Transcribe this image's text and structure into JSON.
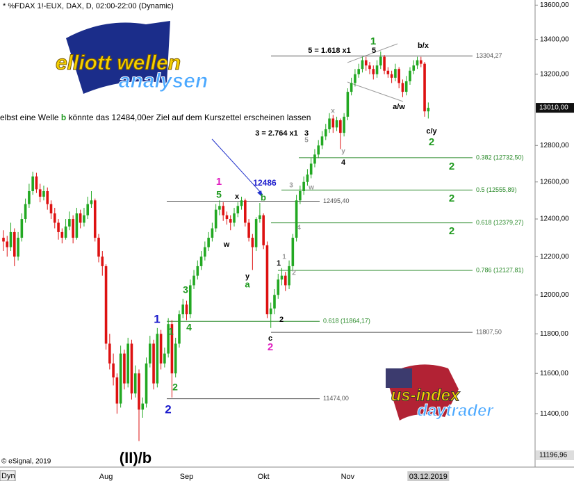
{
  "header": "* %FDAX 1!-EUX, DAX, D, 02:00-22:00 (Dynamic)",
  "caption": [
    "elbst eine Welle ",
    "b",
    " könnte das 12484,00er Ziel auf dem Kurszettel erscheinen lassen"
  ],
  "logos": {
    "top": [
      "elliott wellen",
      "analysen"
    ],
    "bottom": [
      "us-index",
      "daytrader"
    ]
  },
  "footer": {
    "copyright": "© eSignal, 2019",
    "mode": "Dyn"
  },
  "chart_data": {
    "type": "candlestick",
    "yscale": "log",
    "up_color": "#22a822",
    "down_color": "#dd1111",
    "ylim": [
      11140,
      13630
    ],
    "yticks": [
      {
        "value": 11400,
        "label": "11400,00"
      },
      {
        "value": 11600,
        "label": "11600,00"
      },
      {
        "value": 11800,
        "label": "11800,00"
      },
      {
        "value": 12000,
        "label": "12000,00"
      },
      {
        "value": 12200,
        "label": "12200,00"
      },
      {
        "value": 12400,
        "label": "12400,00"
      },
      {
        "value": 12600,
        "label": "12600,00"
      },
      {
        "value": 12800,
        "label": "12800,00"
      },
      {
        "value": 13200,
        "label": "13200,00"
      },
      {
        "value": 13400,
        "label": "13400,00"
      },
      {
        "value": 13600,
        "label": "13600,00"
      }
    ],
    "price_markers": [
      {
        "value": 13010,
        "label": "13010,00"
      },
      {
        "value": 11196.96,
        "label": "11196,96"
      }
    ],
    "categories": [
      null,
      null,
      null,
      null,
      null,
      null,
      null,
      null,
      null,
      null,
      null,
      null,
      null,
      null,
      null,
      null,
      null,
      null,
      null,
      null,
      null,
      null,
      null,
      null,
      null,
      null,
      null,
      null,
      "Aug",
      null,
      null,
      null,
      null,
      null,
      null,
      null,
      null,
      null,
      null,
      null,
      null,
      null,
      null,
      null,
      null,
      null,
      null,
      null,
      null,
      null,
      "Sep",
      null,
      null,
      null,
      null,
      null,
      null,
      null,
      null,
      null,
      null,
      null,
      null,
      null,
      null,
      null,
      null,
      null,
      null,
      null,
      null,
      "Okt",
      null,
      null,
      null,
      null,
      null,
      null,
      null,
      null,
      null,
      null,
      null,
      null,
      null,
      null,
      null,
      null,
      null,
      null,
      null,
      null,
      null,
      null,
      "Nov",
      null,
      null,
      null,
      null,
      null,
      null,
      null,
      null,
      null,
      null,
      null,
      null,
      null,
      null,
      null,
      null,
      null,
      null,
      null,
      null,
      null,
      "03.12.2019"
    ],
    "ohlc": [
      [
        12300,
        12340,
        12230,
        12280
      ],
      [
        12280,
        12310,
        12200,
        12250
      ],
      [
        12250,
        12380,
        12230,
        12330
      ],
      [
        12330,
        12350,
        12150,
        12200
      ],
      [
        12200,
        12330,
        12180,
        12300
      ],
      [
        12300,
        12430,
        12280,
        12400
      ],
      [
        12400,
        12510,
        12380,
        12480
      ],
      [
        12480,
        12590,
        12460,
        12550
      ],
      [
        12550,
        12656,
        12530,
        12630
      ],
      [
        12630,
        12650,
        12540,
        12560
      ],
      [
        12560,
        12590,
        12490,
        12520
      ],
      [
        12520,
        12580,
        12500,
        12550
      ],
      [
        12550,
        12570,
        12450,
        12480
      ],
      [
        12480,
        12500,
        12400,
        12430
      ],
      [
        12430,
        12460,
        12350,
        12380
      ],
      [
        12380,
        12400,
        12290,
        12330
      ],
      [
        12330,
        12350,
        12270,
        12300
      ],
      [
        12300,
        12400,
        12290,
        12360
      ],
      [
        12360,
        12440,
        12340,
        12400
      ],
      [
        12400,
        12420,
        12270,
        12300
      ],
      [
        12300,
        12460,
        12290,
        12430
      ],
      [
        12430,
        12450,
        12350,
        12380
      ],
      [
        12380,
        12460,
        12360,
        12420
      ],
      [
        12420,
        12520,
        12400,
        12480
      ],
      [
        12480,
        12550,
        12460,
        12500
      ],
      [
        12500,
        12510,
        12280,
        12300
      ],
      [
        12300,
        12320,
        12170,
        12200
      ],
      [
        12200,
        12230,
        12100,
        12150
      ],
      [
        12150,
        12160,
        11720,
        11750
      ],
      [
        11750,
        11800,
        11620,
        11650
      ],
      [
        11650,
        11700,
        11540,
        11580
      ],
      [
        11580,
        11600,
        11400,
        11450
      ],
      [
        11450,
        11740,
        11430,
        11700
      ],
      [
        11700,
        11720,
        11520,
        11550
      ],
      [
        11550,
        11780,
        11530,
        11750
      ],
      [
        11750,
        11770,
        11470,
        11500
      ],
      [
        11500,
        11640,
        11480,
        11600
      ],
      [
        11600,
        11620,
        11266,
        11420
      ],
      [
        11420,
        11480,
        11380,
        11450
      ],
      [
        11450,
        11680,
        11430,
        11650
      ],
      [
        11650,
        11790,
        11630,
        11750
      ],
      [
        11750,
        11770,
        11520,
        11550
      ],
      [
        11550,
        11830,
        11530,
        11800
      ],
      [
        11800,
        11820,
        11620,
        11650
      ],
      [
        11650,
        11730,
        11630,
        11700
      ],
      [
        11700,
        11880,
        11680,
        11850
      ],
      [
        11850,
        11870,
        11480,
        11600
      ],
      [
        11600,
        11780,
        11580,
        11750
      ],
      [
        11750,
        11920,
        11730,
        11900
      ],
      [
        11900,
        11980,
        11880,
        11950
      ],
      [
        11950,
        11970,
        11870,
        11900
      ],
      [
        11900,
        12080,
        11880,
        12050
      ],
      [
        12050,
        12130,
        12030,
        12100
      ],
      [
        12100,
        12180,
        12080,
        12150
      ],
      [
        12150,
        12230,
        12130,
        12200
      ],
      [
        12200,
        12280,
        12180,
        12250
      ],
      [
        12250,
        12330,
        12230,
        12300
      ],
      [
        12300,
        12380,
        12280,
        12350
      ],
      [
        12350,
        12480,
        12330,
        12450
      ],
      [
        12450,
        12500,
        12420,
        12470
      ],
      [
        12470,
        12490,
        12390,
        12420
      ],
      [
        12420,
        12440,
        12370,
        12400
      ],
      [
        12400,
        12420,
        12340,
        12380
      ],
      [
        12380,
        12460,
        12360,
        12430
      ],
      [
        12430,
        12490,
        12410,
        12470
      ],
      [
        12470,
        12520,
        12450,
        12500
      ],
      [
        12500,
        12510,
        12360,
        12380
      ],
      [
        12380,
        12400,
        12280,
        12300
      ],
      [
        12300,
        12320,
        12130,
        12250
      ],
      [
        12250,
        12410,
        12230,
        12400
      ],
      [
        12400,
        12486,
        12380,
        12420
      ],
      [
        12420,
        12430,
        12240,
        12260
      ],
      [
        12260,
        12280,
        11880,
        11900
      ],
      [
        11900,
        11960,
        11830,
        11930
      ],
      [
        11930,
        12030,
        11900,
        12000
      ],
      [
        12000,
        12110,
        11980,
        12080
      ],
      [
        12080,
        12140,
        12050,
        12100
      ],
      [
        12100,
        12120,
        12020,
        12050
      ],
      [
        12050,
        12180,
        12030,
        12150
      ],
      [
        12150,
        12320,
        12130,
        12300
      ],
      [
        12300,
        12530,
        12280,
        12500
      ],
      [
        12500,
        12580,
        12480,
        12550
      ],
      [
        12550,
        12630,
        12530,
        12600
      ],
      [
        12600,
        12670,
        12580,
        12640
      ],
      [
        12640,
        12730,
        12620,
        12700
      ],
      [
        12700,
        12780,
        12680,
        12750
      ],
      [
        12750,
        12830,
        12730,
        12800
      ],
      [
        12800,
        12880,
        12780,
        12850
      ],
      [
        12850,
        12920,
        12830,
        12890
      ],
      [
        12890,
        12980,
        12870,
        12950
      ],
      [
        12950,
        12970,
        12870,
        12900
      ],
      [
        12900,
        12960,
        12880,
        12940
      ],
      [
        12940,
        12950,
        12780,
        12870
      ],
      [
        12870,
        12980,
        12850,
        12960
      ],
      [
        12960,
        13120,
        12940,
        13100
      ],
      [
        13100,
        13180,
        13080,
        13150
      ],
      [
        13150,
        13230,
        13130,
        13200
      ],
      [
        13200,
        13260,
        13180,
        13230
      ],
      [
        13230,
        13300,
        13210,
        13280
      ],
      [
        13280,
        13300,
        13220,
        13250
      ],
      [
        13250,
        13270,
        13200,
        13230
      ],
      [
        13230,
        13250,
        13170,
        13200
      ],
      [
        13200,
        13280,
        13180,
        13250
      ],
      [
        13250,
        13330,
        13230,
        13300
      ],
      [
        13300,
        13310,
        13200,
        13220
      ],
      [
        13220,
        13240,
        13180,
        13200
      ],
      [
        13200,
        13220,
        13150,
        13180
      ],
      [
        13180,
        13260,
        13160,
        13230
      ],
      [
        13230,
        13240,
        13120,
        13150
      ],
      [
        13150,
        13170,
        13070,
        13100
      ],
      [
        13100,
        13190,
        13080,
        13160
      ],
      [
        13160,
        13240,
        13140,
        13220
      ],
      [
        13220,
        13280,
        13200,
        13250
      ],
      [
        13250,
        13300,
        13230,
        13280
      ],
      [
        13280,
        13300,
        13240,
        13260
      ],
      [
        13260,
        13270,
        12960,
        12990
      ],
      [
        12990,
        13040,
        12950,
        13010
      ]
    ],
    "levels": [
      {
        "value": 13304.27,
        "label": "13304,27",
        "color": "#555555"
      },
      {
        "value": 12495.4,
        "label": "12495,40",
        "color": "#555555"
      },
      {
        "value": 11807.5,
        "label": "11807,50",
        "color": "#555555"
      },
      {
        "value": 11474,
        "label": "11474,00",
        "color": "#555555"
      },
      {
        "value": 11864.17,
        "label": "0.618 (11864,17)",
        "color": "#2a8a2a"
      },
      {
        "value": 12732.5,
        "label": "0.382 (12732,50)",
        "color": "#2a8a2a"
      },
      {
        "value": 12555.89,
        "label": "0.5 (12555,89)",
        "color": "#2a8a2a"
      },
      {
        "value": 12379.27,
        "label": "0.618 (12379,27)",
        "color": "#2a8a2a"
      },
      {
        "value": 12127.81,
        "label": "0.786 (12127,81)",
        "color": "#2a8a2a"
      }
    ],
    "annotations": [
      {
        "text": "5 = 1.618 x1",
        "color": "#000000"
      },
      {
        "text": "1",
        "color": "#1f9a1f"
      },
      {
        "text": "5",
        "color": "#000000"
      },
      {
        "text": "b/x",
        "color": "#000000"
      },
      {
        "text": "a/w",
        "color": "#000000"
      },
      {
        "text": "c/y",
        "color": "#000000"
      },
      {
        "text": "2",
        "color": "#1f9a1f"
      },
      {
        "text": "x",
        "color": "#999999"
      },
      {
        "text": "3 = 2.764 x1",
        "color": "#000000"
      },
      {
        "text": "3",
        "color": "#000000"
      },
      {
        "text": "5",
        "color": "#999999"
      },
      {
        "text": "y",
        "color": "#999999"
      },
      {
        "text": "4",
        "color": "#000000"
      },
      {
        "text": "2",
        "color": "#1f9a1f"
      },
      {
        "text": "2",
        "color": "#1f9a1f"
      },
      {
        "text": "2",
        "color": "#1f9a1f"
      },
      {
        "text": "12486",
        "color": "#1a1acc"
      },
      {
        "text": "1",
        "color": "#e020c0"
      },
      {
        "text": "5",
        "color": "#1f9a1f"
      },
      {
        "text": "x",
        "color": "#000000"
      },
      {
        "text": "b",
        "color": "#1f9a1f"
      },
      {
        "text": "3",
        "color": "#999999"
      },
      {
        "text": "w",
        "color": "#999999"
      },
      {
        "text": "w",
        "color": "#000000"
      },
      {
        "text": "4",
        "color": "#999999"
      },
      {
        "text": "y",
        "color": "#000000"
      },
      {
        "text": "a",
        "color": "#1f9a1f"
      },
      {
        "text": "1",
        "color": "#000000"
      },
      {
        "text": "1",
        "color": "#999999"
      },
      {
        "text": "2",
        "color": "#999999"
      },
      {
        "text": "3",
        "color": "#1f9a1f"
      },
      {
        "text": "1",
        "color": "#1a1acc"
      },
      {
        "text": "4",
        "color": "#1f9a1f"
      },
      {
        "text": "1",
        "color": "#1f9a1f"
      },
      {
        "text": "2",
        "color": "#000000"
      },
      {
        "text": "c",
        "color": "#000000"
      },
      {
        "text": "2",
        "color": "#e020c0"
      },
      {
        "text": "2",
        "color": "#1f9a1f"
      },
      {
        "text": "2",
        "color": "#1a1acc"
      },
      {
        "text": "(II)/b",
        "color": "#000000"
      }
    ]
  }
}
